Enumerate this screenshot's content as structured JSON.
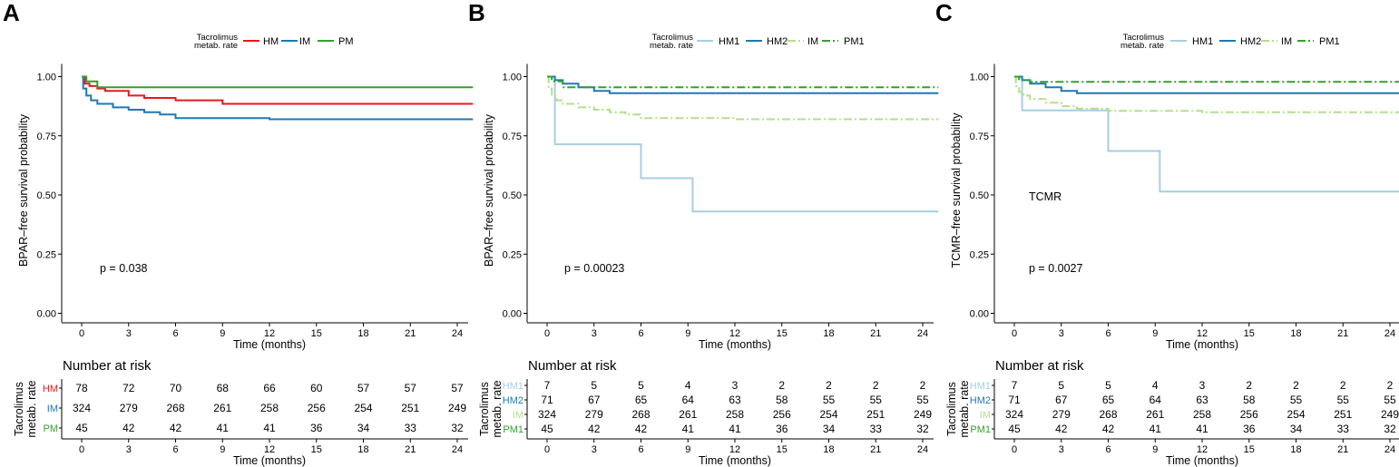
{
  "chart_data": [
    {
      "panel": "A",
      "type": "line",
      "ylabel": "BPAR–free survival probability",
      "xlabel": "Time (months)",
      "legend_title": [
        "Tacrolimus",
        "metab. rate"
      ],
      "xlim": [
        0,
        25
      ],
      "ylim": [
        0,
        1
      ],
      "xticks": [
        0,
        3,
        6,
        9,
        12,
        15,
        18,
        21,
        24
      ],
      "yticks": [
        "0.00",
        "0.25",
        "0.50",
        "0.75",
        "1.00"
      ],
      "annotations": [
        "p = 0.038"
      ],
      "series": [
        {
          "name": "HM",
          "color": "#e41a1c",
          "dash": "solid",
          "points": [
            [
              0,
              1.0
            ],
            [
              0.2,
              0.97
            ],
            [
              0.5,
              0.96
            ],
            [
              1,
              0.95
            ],
            [
              1.5,
              0.94
            ],
            [
              3,
              0.92
            ],
            [
              4,
              0.91
            ],
            [
              6,
              0.9
            ],
            [
              9,
              0.885
            ],
            [
              25,
              0.885
            ]
          ]
        },
        {
          "name": "IM",
          "color": "#1f78b4",
          "dash": "solid",
          "points": [
            [
              0,
              1.0
            ],
            [
              0.1,
              0.95
            ],
            [
              0.3,
              0.92
            ],
            [
              0.6,
              0.9
            ],
            [
              1,
              0.885
            ],
            [
              2,
              0.87
            ],
            [
              3,
              0.86
            ],
            [
              4,
              0.85
            ],
            [
              5,
              0.84
            ],
            [
              6,
              0.825
            ],
            [
              12,
              0.82
            ],
            [
              25,
              0.82
            ]
          ]
        },
        {
          "name": "PM",
          "color": "#33a02c",
          "dash": "solid",
          "points": [
            [
              0,
              1.0
            ],
            [
              0.3,
              0.98
            ],
            [
              1,
              0.955
            ],
            [
              25,
              0.955
            ]
          ]
        }
      ],
      "risk_table": {
        "title": "Number at risk",
        "ylabel": [
          "Tacrolimus",
          "metab. rate"
        ],
        "xlabel": "Time (months)",
        "rows": [
          {
            "group": "HM",
            "color": "#e41a1c",
            "values": [
              "78",
              "72",
              "70",
              "68",
              "66",
              "60",
              "57",
              "57",
              "57"
            ]
          },
          {
            "group": "IM",
            "color": "#1f78b4",
            "values": [
              "324",
              "279",
              "268",
              "261",
              "258",
              "256",
              "254",
              "251",
              "249"
            ]
          },
          {
            "group": "PM",
            "color": "#33a02c",
            "values": [
              "45",
              "42",
              "42",
              "41",
              "41",
              "36",
              "34",
              "33",
              "32"
            ]
          }
        ]
      }
    },
    {
      "panel": "B",
      "type": "line",
      "ylabel": "BPAR–free survival probability",
      "xlabel": "Time (months)",
      "legend_title": [
        "Tacrolimus",
        "metab. rate"
      ],
      "xlim": [
        0,
        25
      ],
      "ylim": [
        0,
        1
      ],
      "xticks": [
        0,
        3,
        6,
        9,
        12,
        15,
        18,
        21,
        24
      ],
      "yticks": [
        "0.00",
        "0.25",
        "0.50",
        "0.75",
        "1.00"
      ],
      "annotations": [
        "p = 0.00023"
      ],
      "series": [
        {
          "name": "HM1",
          "color": "#a6cee3",
          "dash": "solid",
          "points": [
            [
              0,
              1.0
            ],
            [
              0.5,
              0.714
            ],
            [
              6,
              0.571
            ],
            [
              9.3,
              0.43
            ],
            [
              25,
              0.43
            ]
          ]
        },
        {
          "name": "HM2",
          "color": "#1f78b4",
          "dash": "solid",
          "points": [
            [
              0,
              1.0
            ],
            [
              0.5,
              0.985
            ],
            [
              1,
              0.97
            ],
            [
              2,
              0.955
            ],
            [
              3,
              0.94
            ],
            [
              4,
              0.93
            ],
            [
              25,
              0.93
            ]
          ]
        },
        {
          "name": "IM",
          "color": "#b2df8a",
          "dash": "dashdot",
          "points": [
            [
              0,
              1.0
            ],
            [
              0.1,
              0.95
            ],
            [
              0.3,
              0.92
            ],
            [
              0.6,
              0.9
            ],
            [
              1,
              0.885
            ],
            [
              2,
              0.87
            ],
            [
              3,
              0.86
            ],
            [
              4,
              0.85
            ],
            [
              5,
              0.84
            ],
            [
              6,
              0.825
            ],
            [
              12,
              0.82
            ],
            [
              25,
              0.82
            ]
          ]
        },
        {
          "name": "PM1",
          "color": "#33a02c",
          "dash": "dashdot",
          "points": [
            [
              0,
              1.0
            ],
            [
              0.3,
              0.98
            ],
            [
              1,
              0.955
            ],
            [
              25,
              0.955
            ]
          ]
        }
      ],
      "risk_table": {
        "title": "Number at risk",
        "ylabel": [
          "Tacrolimus",
          "metab. rate"
        ],
        "xlabel": "Time (months)",
        "rows": [
          {
            "group": "HM1",
            "color": "#a6cee3",
            "values": [
              "7",
              "5",
              "5",
              "4",
              "3",
              "2",
              "2",
              "2",
              "2"
            ]
          },
          {
            "group": "HM2",
            "color": "#1f78b4",
            "values": [
              "71",
              "67",
              "65",
              "64",
              "63",
              "58",
              "55",
              "55",
              "55"
            ]
          },
          {
            "group": "IM",
            "color": "#b2df8a",
            "values": [
              "324",
              "279",
              "268",
              "261",
              "258",
              "256",
              "254",
              "251",
              "249"
            ]
          },
          {
            "group": "PM1",
            "color": "#33a02c",
            "values": [
              "45",
              "42",
              "42",
              "41",
              "41",
              "36",
              "34",
              "33",
              "32"
            ]
          }
        ]
      }
    },
    {
      "panel": "C",
      "type": "line",
      "ylabel": "TCMR–free survival probability",
      "xlabel": "Time (months)",
      "legend_title": [
        "Tacrolimus",
        "metab. rate"
      ],
      "xlim": [
        0,
        25
      ],
      "ylim": [
        0,
        1
      ],
      "xticks": [
        0,
        3,
        6,
        9,
        12,
        15,
        18,
        21,
        24
      ],
      "yticks": [
        "0.00",
        "0.25",
        "0.50",
        "0.75",
        "1.00"
      ],
      "annotations": [
        "TCMR",
        "p = 0.0027"
      ],
      "series": [
        {
          "name": "HM1",
          "color": "#a6cee3",
          "dash": "solid",
          "points": [
            [
              0,
              1.0
            ],
            [
              0.5,
              0.857
            ],
            [
              6,
              0.686
            ],
            [
              9.3,
              0.514
            ],
            [
              25,
              0.514
            ]
          ]
        },
        {
          "name": "HM2",
          "color": "#1f78b4",
          "dash": "solid",
          "points": [
            [
              0,
              1.0
            ],
            [
              0.5,
              0.985
            ],
            [
              1,
              0.97
            ],
            [
              2,
              0.955
            ],
            [
              3,
              0.94
            ],
            [
              4,
              0.93
            ],
            [
              25,
              0.93
            ]
          ]
        },
        {
          "name": "IM",
          "color": "#b2df8a",
          "dash": "dashdot",
          "points": [
            [
              0,
              1.0
            ],
            [
              0.1,
              0.96
            ],
            [
              0.3,
              0.935
            ],
            [
              0.6,
              0.92
            ],
            [
              1,
              0.905
            ],
            [
              2,
              0.89
            ],
            [
              3,
              0.875
            ],
            [
              4,
              0.865
            ],
            [
              6,
              0.855
            ],
            [
              12,
              0.85
            ],
            [
              25,
              0.85
            ]
          ]
        },
        {
          "name": "PM1",
          "color": "#33a02c",
          "dash": "dashdot",
          "points": [
            [
              0,
              1.0
            ],
            [
              0.3,
              0.985
            ],
            [
              1,
              0.978
            ],
            [
              25,
              0.978
            ]
          ]
        }
      ],
      "risk_table": {
        "title": "Number at risk",
        "ylabel": [
          "Tacrolimus",
          "metab. rate"
        ],
        "xlabel": "Time (months)",
        "rows": [
          {
            "group": "HM1",
            "color": "#a6cee3",
            "values": [
              "7",
              "5",
              "5",
              "4",
              "3",
              "2",
              "2",
              "2",
              "2"
            ]
          },
          {
            "group": "HM2",
            "color": "#1f78b4",
            "values": [
              "71",
              "67",
              "65",
              "64",
              "63",
              "58",
              "55",
              "55",
              "55"
            ]
          },
          {
            "group": "IM",
            "color": "#b2df8a",
            "values": [
              "324",
              "279",
              "268",
              "261",
              "258",
              "256",
              "254",
              "251",
              "249"
            ]
          },
          {
            "group": "PM1",
            "color": "#33a02c",
            "values": [
              "45",
              "42",
              "42",
              "41",
              "41",
              "36",
              "34",
              "33",
              "32"
            ]
          }
        ]
      }
    }
  ]
}
